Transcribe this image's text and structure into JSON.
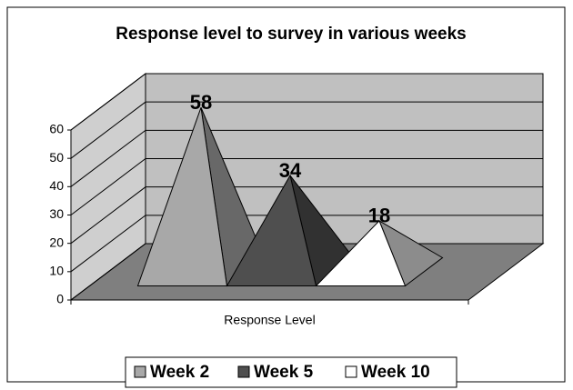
{
  "chart_data": {
    "type": "pyramid3d",
    "title": "Response level to survey in various weeks",
    "categories": [
      "Response Level"
    ],
    "series": [
      {
        "name": "Week 2",
        "color": "#a8a8a8",
        "values": [
          58
        ]
      },
      {
        "name": "Week 5",
        "color": "#4f4f4f",
        "values": [
          34
        ]
      },
      {
        "name": "Week 10",
        "color": "#ffffff",
        "values": [
          18
        ]
      }
    ],
    "ylim": [
      0,
      60
    ],
    "yticks": [
      0,
      10,
      20,
      30,
      40,
      50,
      60
    ],
    "grid": true,
    "legend": "bottom"
  }
}
